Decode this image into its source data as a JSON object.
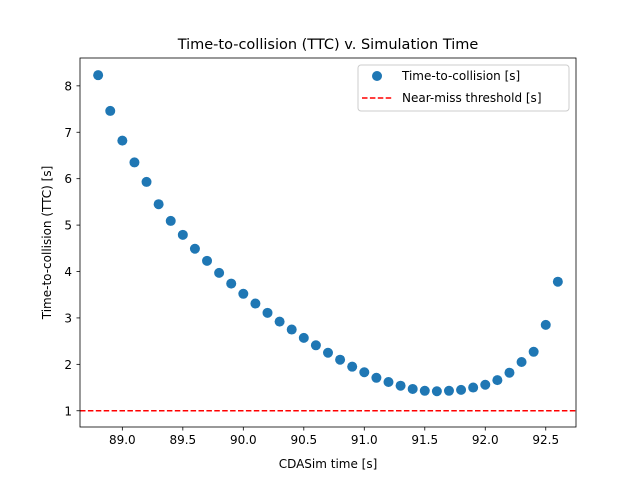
{
  "chart_data": {
    "type": "scatter",
    "title": "Time-to-collision (TTC) v. Simulation Time",
    "xlabel": "CDASim time [s]",
    "ylabel": "Time-to-collision (TTC) [s]",
    "xlim": [
      88.65,
      92.75
    ],
    "ylim": [
      0.65,
      8.6
    ],
    "xticks": [
      "89.0",
      "89.5",
      "90.0",
      "90.5",
      "91.0",
      "91.5",
      "92.0",
      "92.5"
    ],
    "yticks": [
      "1",
      "2",
      "3",
      "4",
      "5",
      "6",
      "7",
      "8"
    ],
    "grid": false,
    "legend_position": "top-right",
    "series": [
      {
        "name": "Time-to-collision [s]",
        "kind": "scatter",
        "color": "#1f77b4",
        "x": [
          88.8,
          88.9,
          89.0,
          89.1,
          89.2,
          89.3,
          89.4,
          89.5,
          89.6,
          89.7,
          89.8,
          89.9,
          90.0,
          90.1,
          90.2,
          90.3,
          90.4,
          90.5,
          90.6,
          90.7,
          90.8,
          90.9,
          91.0,
          91.1,
          91.2,
          91.3,
          91.4,
          91.5,
          91.6,
          91.7,
          91.8,
          91.9,
          92.0,
          92.1,
          92.2,
          92.3,
          92.4,
          92.5,
          92.6
        ],
        "y": [
          8.23,
          7.46,
          6.82,
          6.35,
          5.93,
          5.45,
          5.09,
          4.79,
          4.49,
          4.23,
          3.97,
          3.74,
          3.52,
          3.31,
          3.11,
          2.92,
          2.75,
          2.57,
          2.41,
          2.25,
          2.1,
          1.95,
          1.83,
          1.71,
          1.62,
          1.54,
          1.47,
          1.43,
          1.42,
          1.43,
          1.45,
          1.5,
          1.56,
          1.66,
          1.82,
          2.05,
          2.27,
          2.85,
          3.78
        ]
      },
      {
        "name": "Near-miss threshold [s]",
        "kind": "hline",
        "color": "#ff0000",
        "y": 1.0
      }
    ]
  }
}
